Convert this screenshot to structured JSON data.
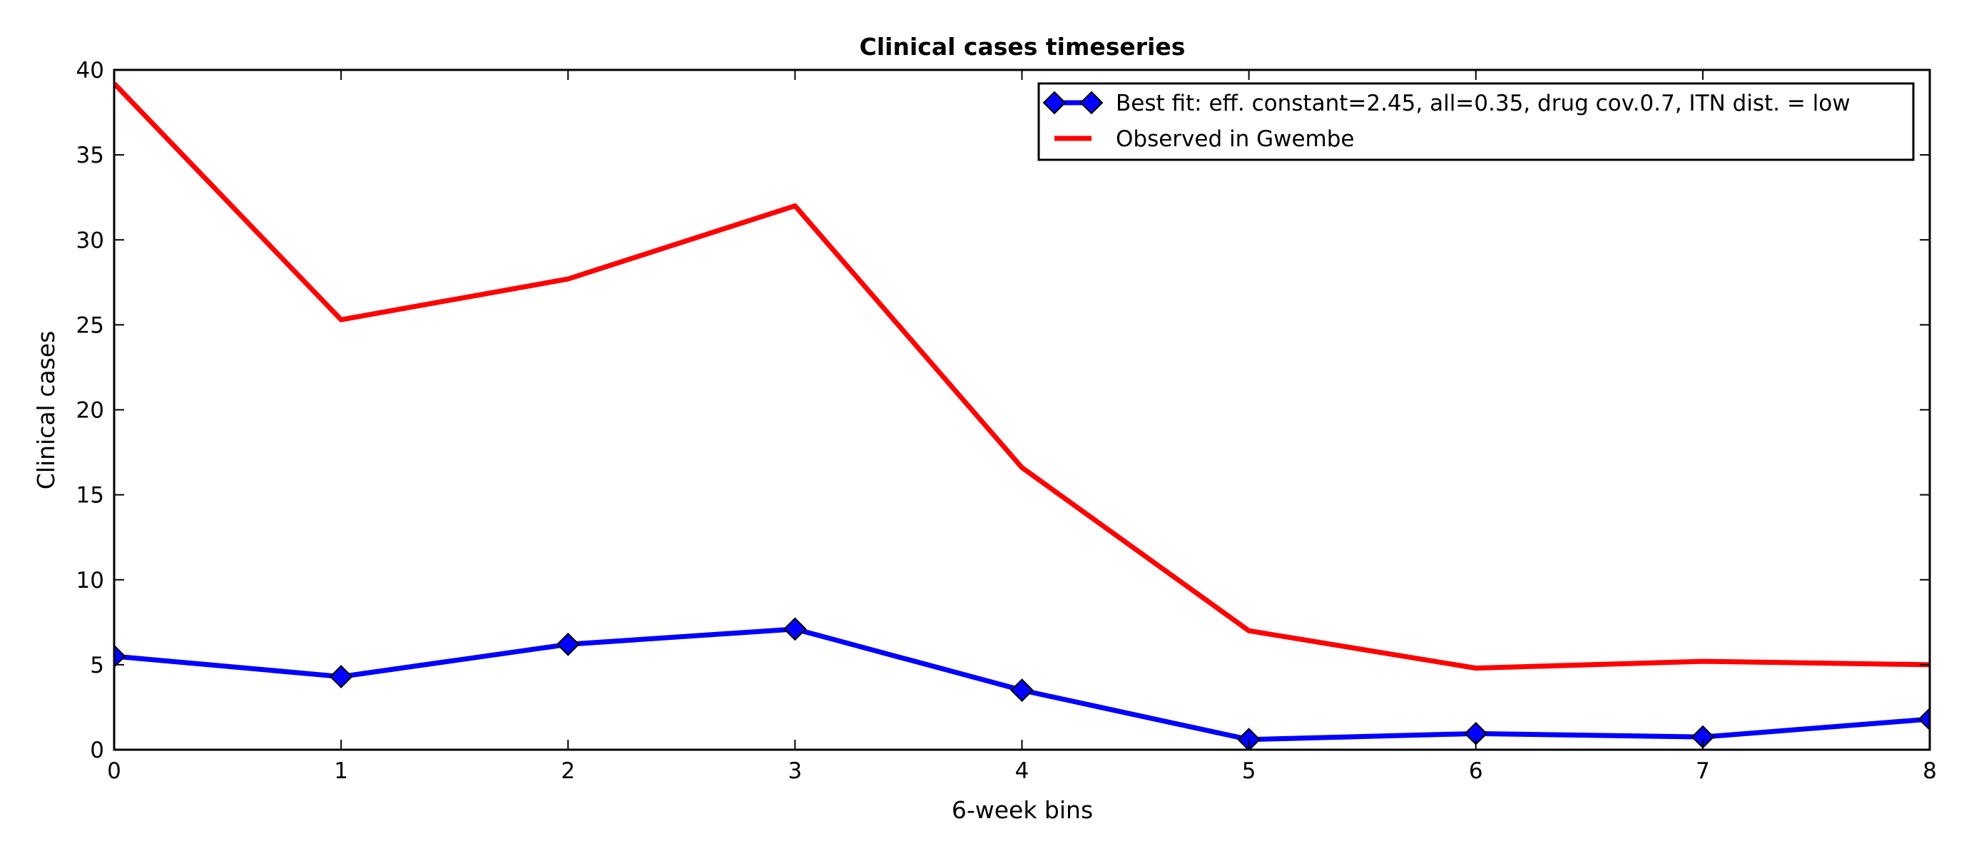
{
  "chart_data": {
    "type": "line",
    "title": "Clinical cases timeseries",
    "xlabel": "6-week bins",
    "ylabel": "Clinical cases",
    "xlim": [
      0,
      8
    ],
    "ylim": [
      0,
      40
    ],
    "x_ticks": [
      0,
      1,
      2,
      3,
      4,
      5,
      6,
      7,
      8
    ],
    "y_ticks": [
      0,
      5,
      10,
      15,
      20,
      25,
      30,
      35,
      40
    ],
    "grid": false,
    "legend_position": "top-right",
    "x": [
      0,
      1,
      2,
      3,
      4,
      5,
      6,
      7,
      8
    ],
    "series": [
      {
        "name": "Best fit: eff. constant=2.45, all=0.35, drug cov.0.7, ITN dist. = low",
        "color": "#0000ff",
        "marker": "diamond",
        "values": [
          5.5,
          4.3,
          6.2,
          7.1,
          3.5,
          0.6,
          0.95,
          0.75,
          1.8
        ]
      },
      {
        "name": "Observed in Gwembe",
        "color": "#ff0000",
        "marker": "none",
        "values": [
          39.2,
          25.3,
          27.7,
          32.0,
          16.6,
          7.0,
          4.8,
          5.2,
          5.0
        ]
      }
    ]
  }
}
